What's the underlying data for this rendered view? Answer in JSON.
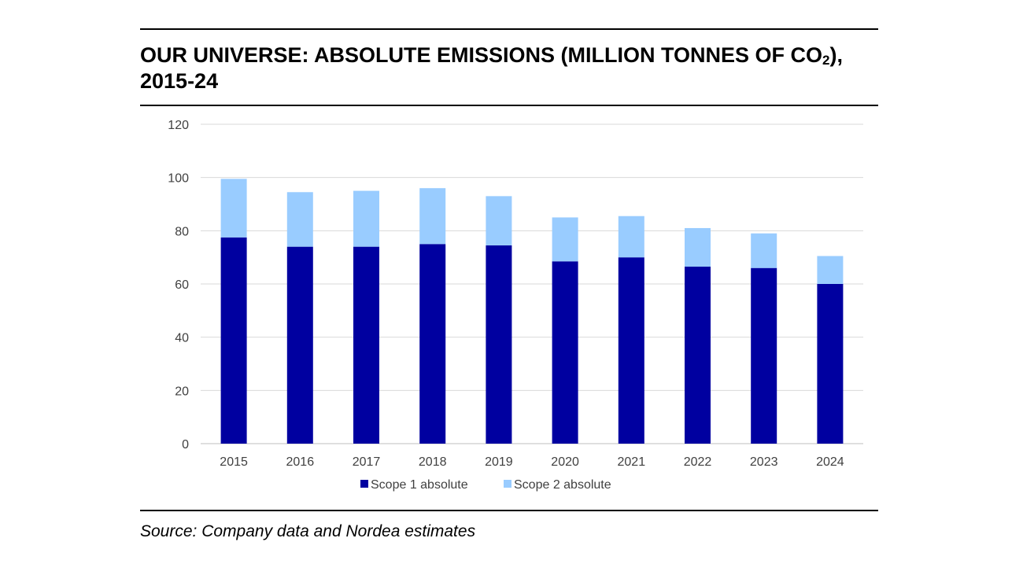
{
  "header": {
    "title_main": "OUR UNIVERSE: ABSOLUTE EMISSIONS (MILLION TONNES OF CO",
    "title_sub": "2",
    "title_end": "), 2015-24"
  },
  "footer": {
    "source": "Source: Company data and Nordea estimates"
  },
  "chart_data": {
    "type": "bar",
    "stacked": true,
    "title": "OUR UNIVERSE: ABSOLUTE EMISSIONS (MILLION TONNES OF CO2), 2015-24",
    "xlabel": "",
    "ylabel": "",
    "categories": [
      "2015",
      "2016",
      "2017",
      "2018",
      "2019",
      "2020",
      "2021",
      "2022",
      "2023",
      "2024"
    ],
    "series": [
      {
        "name": "Scope 1 absolute",
        "color": "#0000a0",
        "values": [
          77.5,
          74,
          74,
          75,
          74.5,
          68.5,
          70,
          66.5,
          66,
          60
        ]
      },
      {
        "name": "Scope 2 absolute",
        "color": "#99ccff",
        "values": [
          22,
          20.5,
          21,
          21,
          18.5,
          16.5,
          15.5,
          14.5,
          13,
          10.5
        ]
      }
    ],
    "ylim": [
      0,
      120
    ],
    "yticks": [
      0,
      20,
      40,
      60,
      80,
      100,
      120
    ],
    "grid": true,
    "gridColor": "#d9d9d9",
    "legend": "bottom-center"
  }
}
